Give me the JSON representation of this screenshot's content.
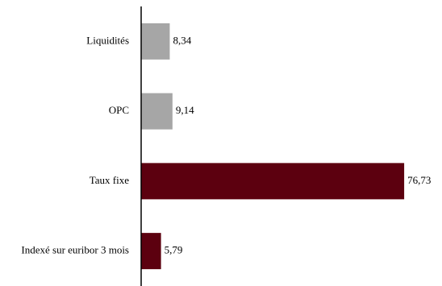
{
  "chart_data": {
    "type": "bar",
    "orientation": "horizontal",
    "categories": [
      "Liquidités",
      "OPC",
      "Taux fixe",
      "Indexé sur euribor 3 mois"
    ],
    "values": [
      8.34,
      9.14,
      76.73,
      5.79
    ],
    "value_labels": [
      "8,34",
      "9,14",
      "76,73",
      "5,79"
    ],
    "colors": [
      "#a6a6a6",
      "#a6a6a6",
      "#5c000f",
      "#5c000f"
    ],
    "title": "",
    "xlabel": "",
    "ylabel": "",
    "xlim": [
      0,
      80
    ],
    "grid": false,
    "legend": "none"
  }
}
